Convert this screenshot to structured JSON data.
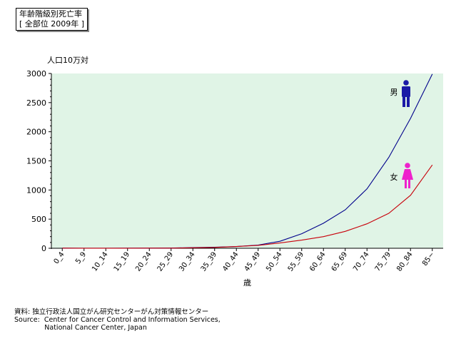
{
  "header": {
    "title_line1": "年齢階級別死亡率",
    "title_line2": "[ 全部位 2009年 ]"
  },
  "source": {
    "line1": "資料: 独立行政法人国立がん研究センターがん対策情報センター",
    "line2": "Source:  Center for Cancer Control and Information Services,",
    "line3": "              National Cancer Center, Japan"
  },
  "colors": {
    "plot_bg": "#e0f4e6",
    "male": "#00008b",
    "female": "#c8000a",
    "male_icon": "#1a1aa6",
    "female_icon": "#ee22cc"
  },
  "chart_data": {
    "type": "line",
    "title": "",
    "ylabel": "人口10万対",
    "xlabel": "歳",
    "ylim": [
      0,
      3000
    ],
    "yticks": [
      0,
      500,
      1000,
      1500,
      2000,
      2500,
      3000
    ],
    "grid": false,
    "categories": [
      "0_4",
      "5_9",
      "10_14",
      "15_19",
      "20_24",
      "25_29",
      "30_34",
      "35_39",
      "40_44",
      "45_49",
      "50_54",
      "55_59",
      "60_64",
      "65_69",
      "70_74",
      "75_79",
      "80_84",
      "85~"
    ],
    "series": [
      {
        "name": "男",
        "icon": "male-figure-icon",
        "values": [
          2,
          1,
          1,
          2,
          3,
          4,
          12,
          18,
          30,
          55,
          120,
          250,
          430,
          660,
          1020,
          1560,
          2230,
          2990
        ]
      },
      {
        "name": "女",
        "icon": "female-figure-icon",
        "values": [
          2,
          1,
          1,
          1,
          2,
          3,
          8,
          15,
          30,
          50,
          90,
          140,
          200,
          290,
          420,
          600,
          910,
          1430
        ]
      }
    ]
  }
}
